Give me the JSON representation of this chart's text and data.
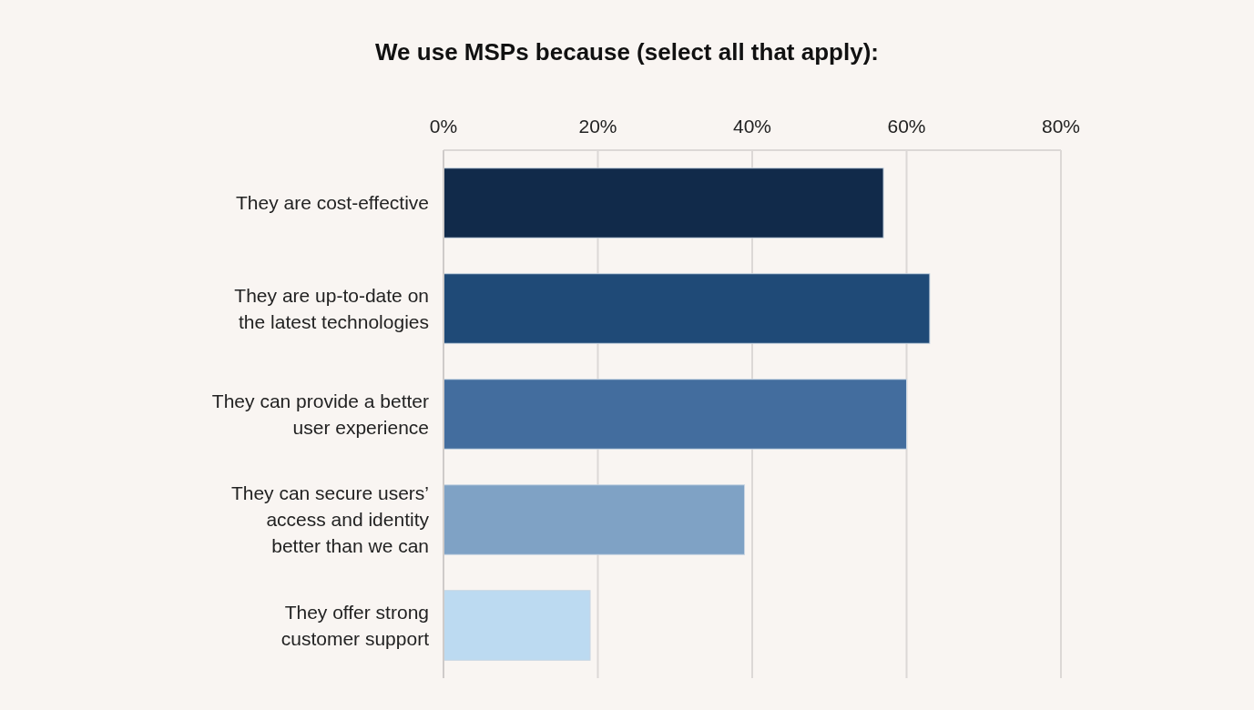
{
  "chart_data": {
    "type": "bar",
    "orientation": "horizontal",
    "title": "We use MSPs because (select all that apply):",
    "categories": [
      "They are cost-effective",
      "They are up-to-date on\nthe latest technologies",
      "They can provide a better\nuser experience",
      "They can secure users’\naccess and identity\nbetter than we can",
      "They offer strong\ncustomer support"
    ],
    "values": [
      57,
      63,
      60,
      39,
      19
    ],
    "colors": [
      "#112a4a",
      "#1f4a77",
      "#436d9e",
      "#7fa2c5",
      "#bcdaf1"
    ],
    "xlim": [
      0,
      80
    ],
    "xticks": [
      {
        "value": 0,
        "label": "0%"
      },
      {
        "value": 20,
        "label": "20%"
      },
      {
        "value": 40,
        "label": "40%"
      },
      {
        "value": 60,
        "label": "60%"
      },
      {
        "value": 80,
        "label": "80%"
      }
    ],
    "grid": "x"
  }
}
